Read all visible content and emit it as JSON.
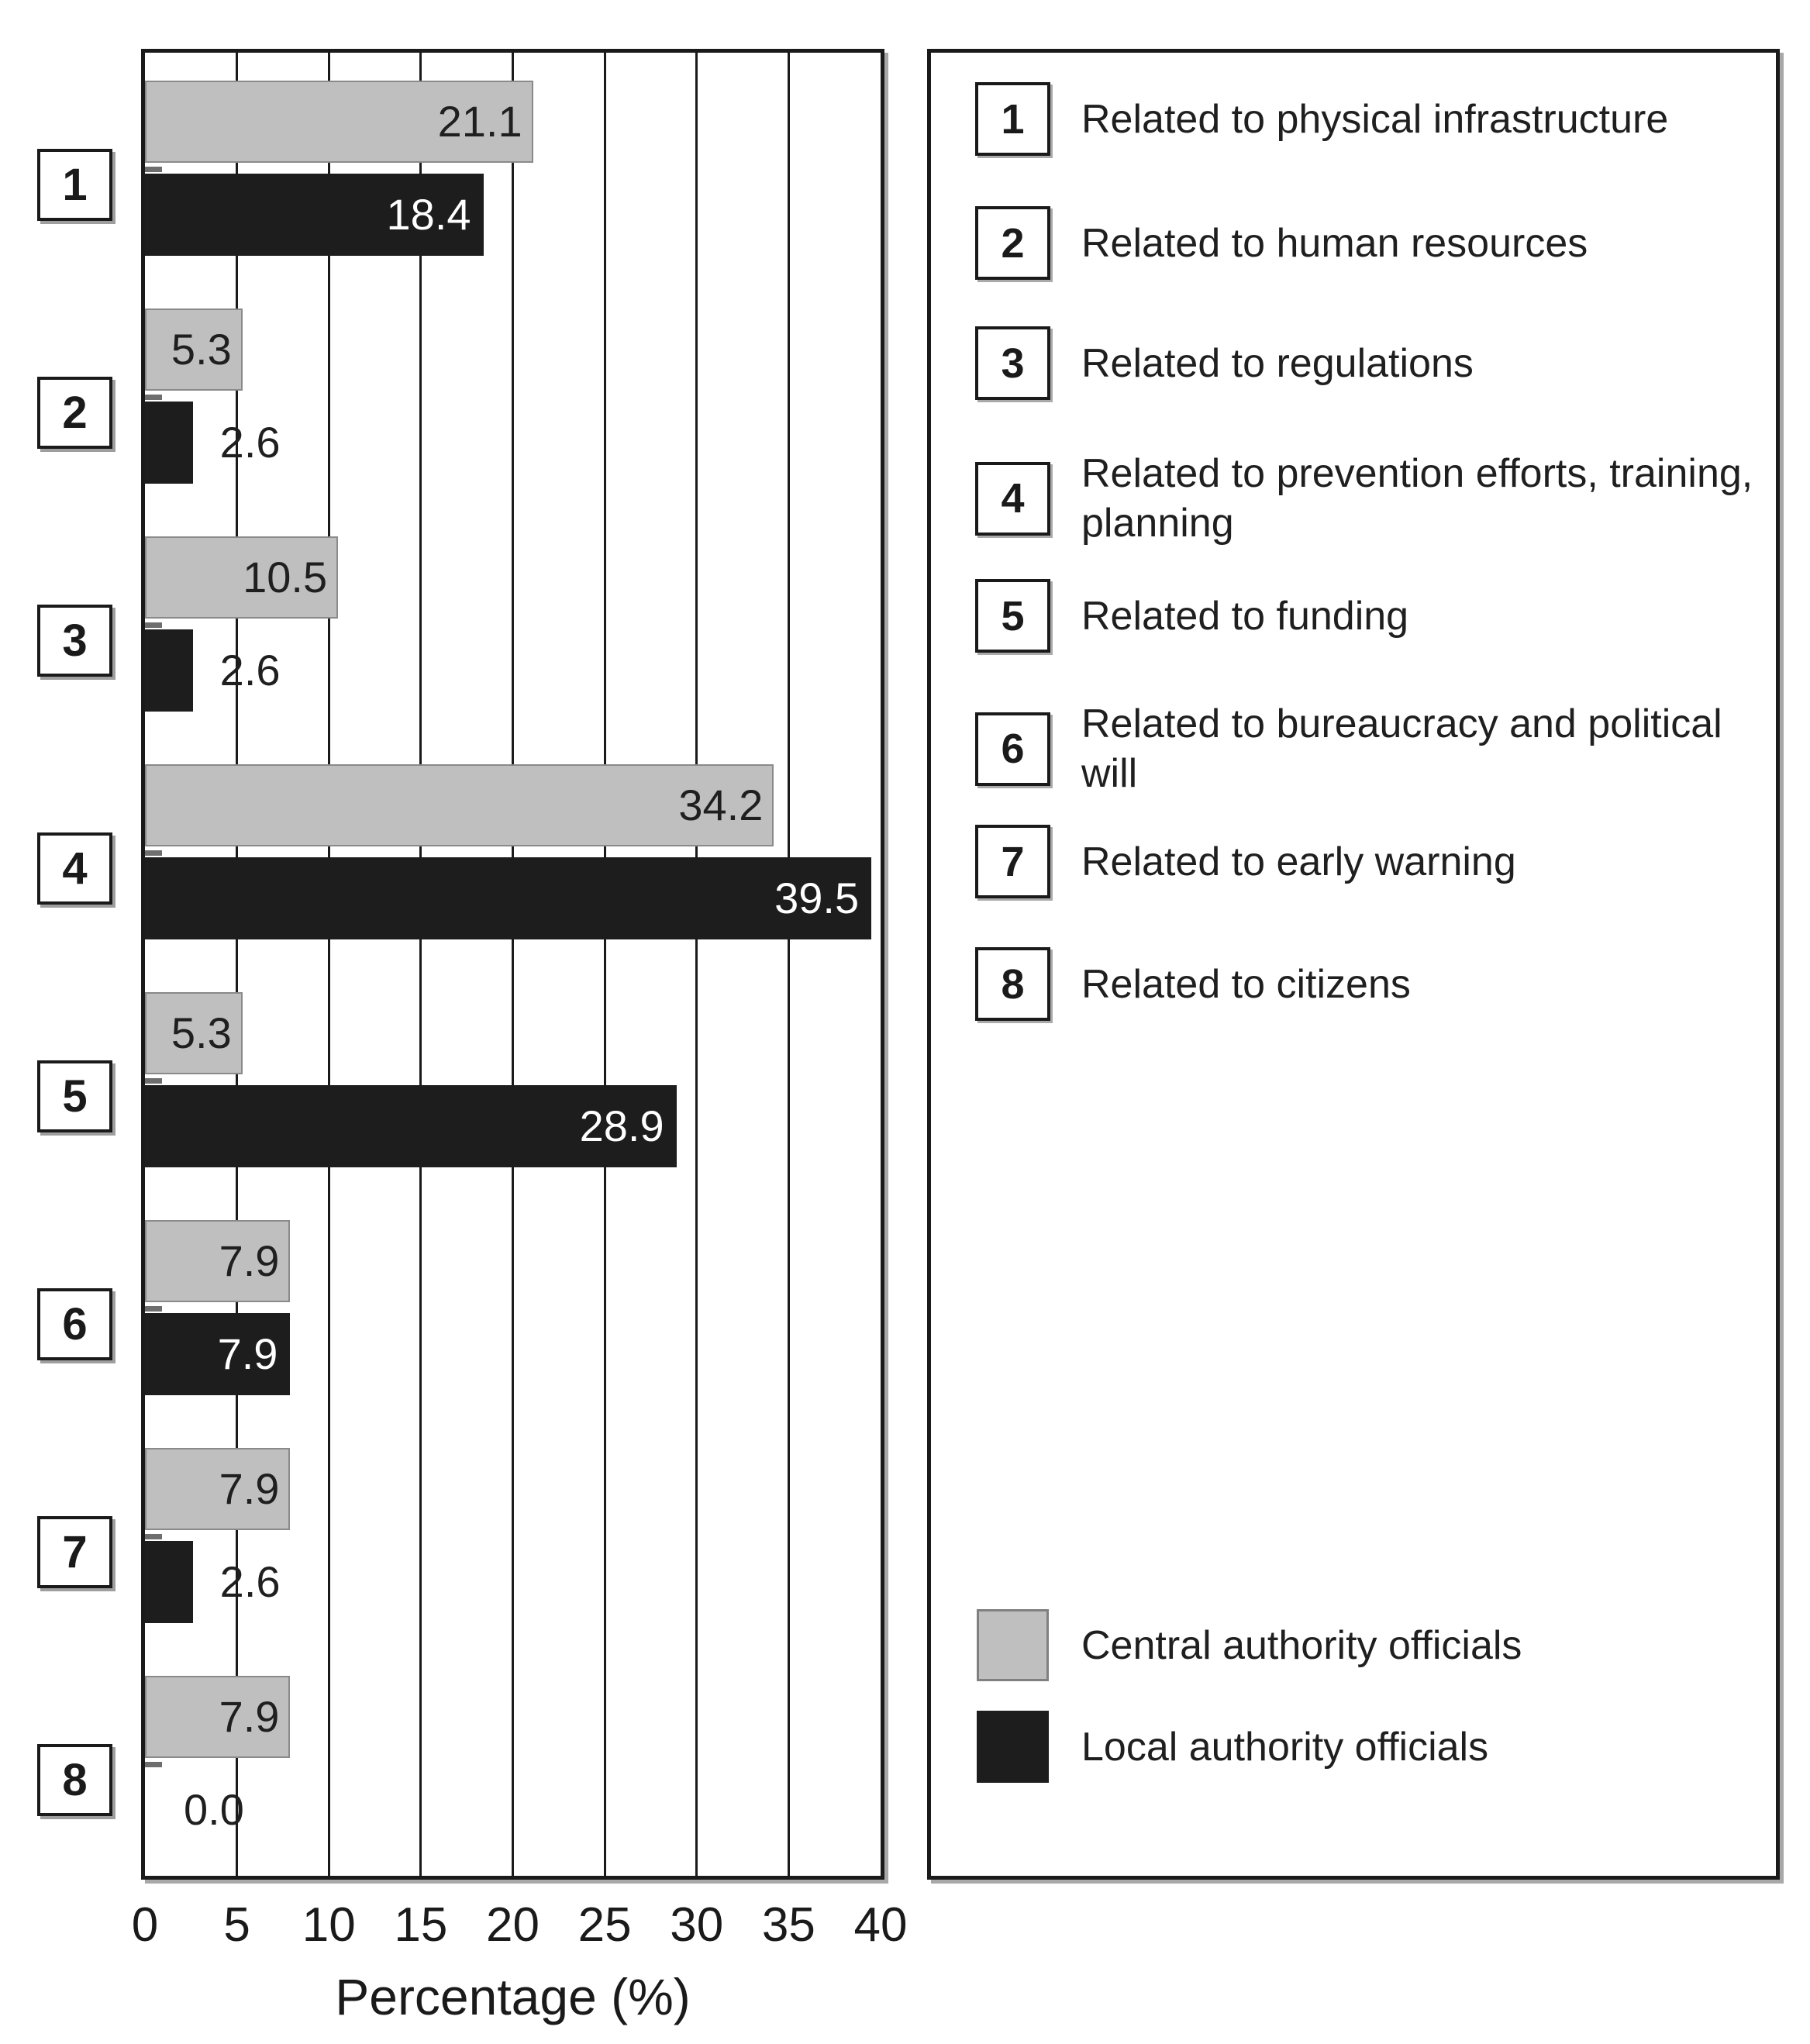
{
  "chart_data": {
    "type": "bar",
    "orientation": "horizontal",
    "title": "",
    "xlabel": "Percentage (%)",
    "ylabel": "",
    "xlim": [
      0,
      40
    ],
    "xticks": [
      0,
      5,
      10,
      15,
      20,
      25,
      30,
      35,
      40
    ],
    "grid": "vertical gridlines at every tick",
    "legend_position": "right box: numbered category key on top, series swatches at bottom",
    "value_label_decimals": 1,
    "categories": [
      {
        "num": "1",
        "label": "Related to physical infrastructure"
      },
      {
        "num": "2",
        "label": "Related to human resources"
      },
      {
        "num": "3",
        "label": "Related to regulations"
      },
      {
        "num": "4",
        "label": "Related to prevention efforts, training,\nplanning"
      },
      {
        "num": "5",
        "label": "Related to funding"
      },
      {
        "num": "6",
        "label": "Related to bureaucracy and political will"
      },
      {
        "num": "7",
        "label": "Related to early warning"
      },
      {
        "num": "8",
        "label": "Related to citizens"
      }
    ],
    "series": [
      {
        "name": "Central authority officials",
        "color": "#bfbfbf",
        "values": [
          21.1,
          5.3,
          10.5,
          34.2,
          5.3,
          7.9,
          7.9,
          7.9
        ]
      },
      {
        "name": "Local authority officials",
        "color": "#1d1d1d",
        "values": [
          18.4,
          2.6,
          2.6,
          39.5,
          28.9,
          7.9,
          2.6,
          0.0
        ]
      }
    ]
  },
  "colors": {
    "background": "#ffffff",
    "frame": "#1a1a1a",
    "gridline": "#1a1a1a",
    "text": "#1a1a1a",
    "bar_central": "#bfbfbf",
    "bar_central_border": "#8a8a8a",
    "bar_local": "#1d1d1d",
    "value_label_on_gray": "#1f1f1f",
    "value_label_on_black": "#ffffff",
    "category_tick": "#6e6e6e",
    "shadow": "#a8a8a8"
  }
}
